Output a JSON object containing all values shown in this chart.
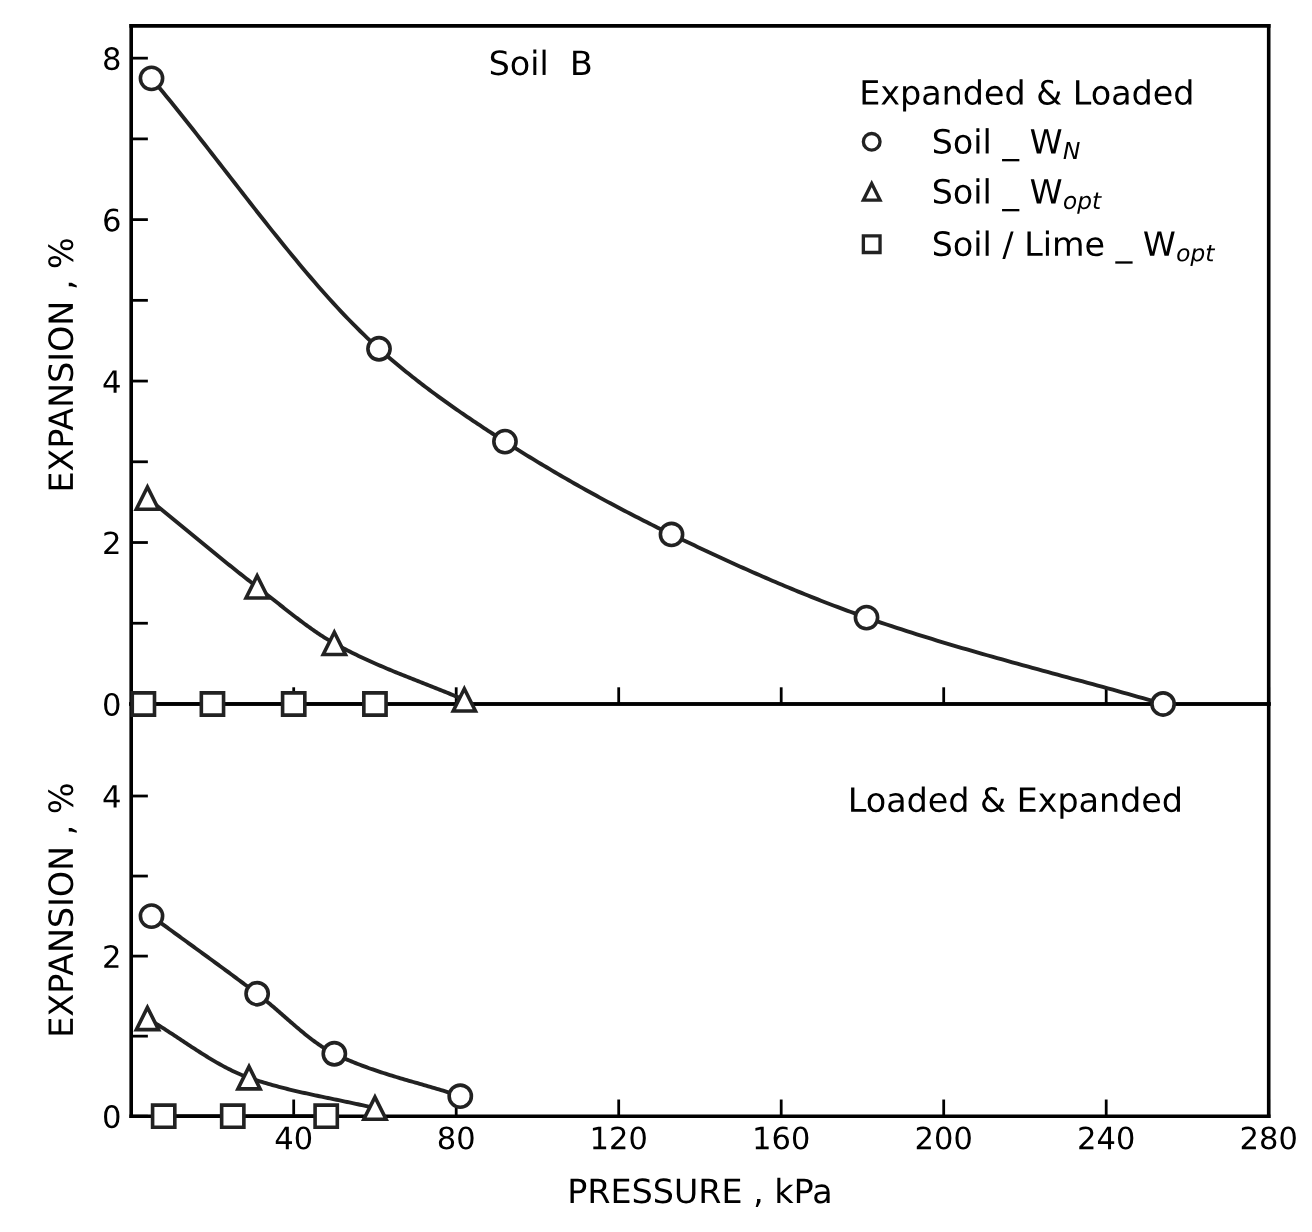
{
  "chart_data": [
    {
      "type": "line",
      "annotations": [
        "Soil  B"
      ],
      "ylabel": "EXPANSION , %",
      "legend_title": "Expanded & Loaded",
      "legend": "top right",
      "tick_labels": "y",
      "grid": false,
      "line_style": "solid",
      "xlim": [
        0,
        280
      ],
      "xticks": [
        40,
        80,
        120,
        160,
        200,
        240,
        280
      ],
      "ylim": [
        0,
        8.4
      ],
      "yticks": [
        0,
        {
          "value": 1,
          "label": null
        },
        2,
        {
          "value": 3,
          "label": null
        },
        4,
        {
          "value": 5,
          "label": null
        },
        6,
        {
          "value": 7,
          "label": null
        },
        8
      ],
      "series": [
        {
          "name": "Soil _ W$_{N}$",
          "color": "#222222",
          "marker": "circle",
          "x": [
            5,
            61,
            92,
            133,
            181,
            254
          ],
          "values": [
            7.75,
            4.4,
            3.25,
            2.1,
            1.07,
            0
          ]
        },
        {
          "name": "Soil _ W$_{opt}$",
          "color": "#222222",
          "marker": "triangle",
          "x": [
            4,
            31,
            50,
            82
          ],
          "values": [
            2.55,
            1.45,
            0.75,
            0.05
          ]
        },
        {
          "name": "Soil / Lime _ W$_{opt}$",
          "color": "#222222",
          "marker": "square",
          "x": [
            3,
            20,
            40,
            60
          ],
          "values": [
            0,
            0,
            0,
            0
          ]
        }
      ]
    },
    {
      "type": "line",
      "annotations": [
        "Loaded & Expanded"
      ],
      "ylabel": "EXPANSION , %",
      "xlabel": "PRESSURE , kPa",
      "grid": false,
      "line_style": "solid",
      "xlim": [
        0,
        280
      ],
      "xticks": [
        40,
        80,
        120,
        160,
        200,
        240,
        280
      ],
      "ylim": [
        0,
        5.15
      ],
      "yticks": [
        0,
        {
          "value": 1,
          "label": null
        },
        2,
        {
          "value": 3,
          "label": null
        },
        4
      ],
      "series": [
        {
          "color": "#222222",
          "marker": "circle",
          "x": [
            5,
            31,
            50,
            81
          ],
          "values": [
            2.5,
            1.53,
            0.78,
            0.25
          ]
        },
        {
          "color": "#222222",
          "marker": "triangle",
          "x": [
            4,
            29,
            60
          ],
          "values": [
            1.22,
            0.48,
            0.1
          ]
        },
        {
          "color": "#222222",
          "marker": "square",
          "x": [
            8,
            25,
            48
          ],
          "values": [
            0,
            0,
            0
          ]
        }
      ]
    }
  ]
}
